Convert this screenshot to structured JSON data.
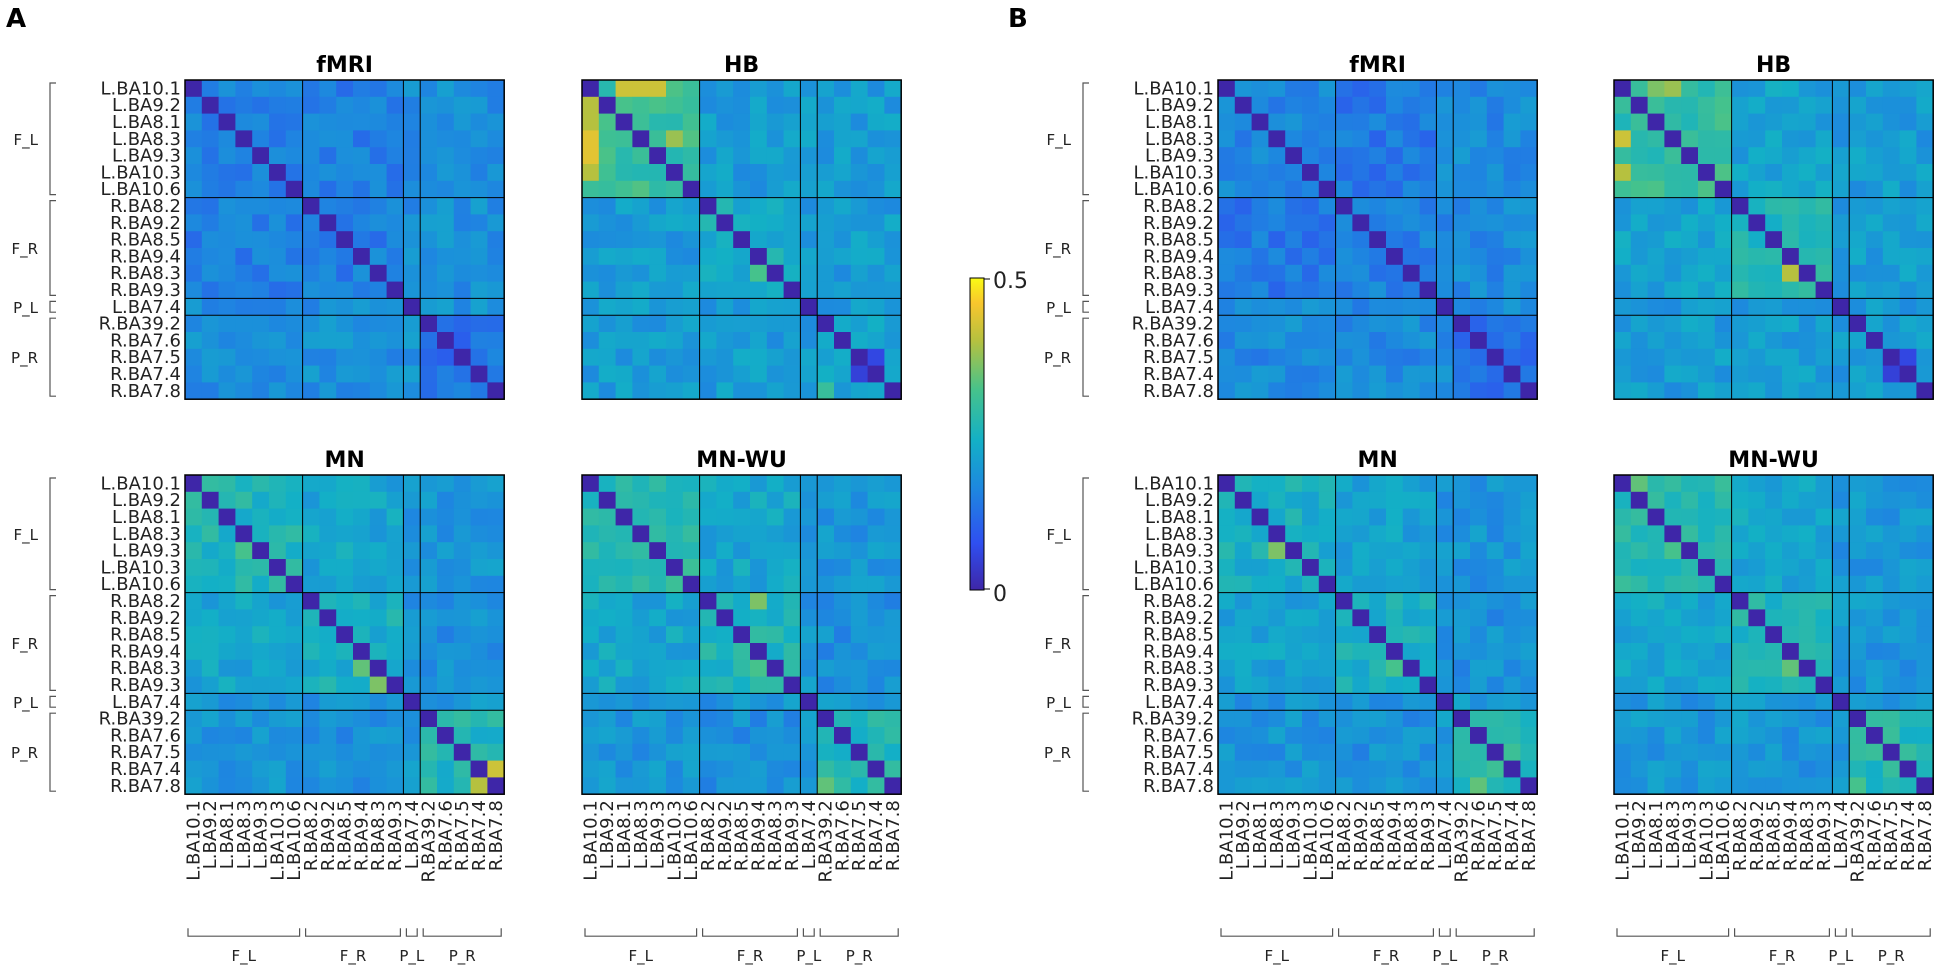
{
  "figure": {
    "panel_letters": [
      "A",
      "B"
    ]
  },
  "chart_data": {
    "type": "heatmap",
    "value_range": [
      0,
      0.5
    ],
    "colorbar": {
      "ticks": [
        "0.5",
        "0"
      ],
      "colormap": "parula"
    },
    "regions": [
      "L.BA10.1",
      "L.BA9.2",
      "L.BA8.1",
      "L.BA8.3",
      "L.BA9.3",
      "L.BA10.3",
      "L.BA10.6",
      "R.BA8.2",
      "R.BA9.2",
      "R.BA8.5",
      "R.BA9.4",
      "R.BA8.3",
      "R.BA9.3",
      "L.BA7.4",
      "R.BA39.2",
      "R.BA7.6",
      "R.BA7.5",
      "R.BA7.4",
      "R.BA7.8"
    ],
    "groups": [
      {
        "label": "F_L",
        "start": 0,
        "end": 6
      },
      {
        "label": "F_R",
        "start": 7,
        "end": 12
      },
      {
        "label": "P_L",
        "start": 13,
        "end": 13
      },
      {
        "label": "P_R",
        "start": 14,
        "end": 18
      }
    ],
    "panels": [
      {
        "letter": "A",
        "matrices": [
          {
            "title": "fMRI",
            "base": 0.18,
            "diagonal": 0,
            "blocks": [
              [
                0,
                0,
                0.16
              ],
              [
                1,
                1,
                0.15
              ],
              [
                2,
                2,
                0.16
              ],
              [
                3,
                3,
                0.13
              ],
              [
                0,
                1,
                0.15
              ]
            ],
            "hotspots": []
          },
          {
            "title": "HB",
            "base": 0.2,
            "diagonal": 0,
            "blocks": [
              [
                0,
                0,
                0.3
              ],
              [
                1,
                1,
                0.24
              ],
              [
                2,
                2,
                0.2
              ],
              [
                3,
                3,
                0.22
              ],
              [
                0,
                1,
                0.2
              ],
              [
                0,
                3,
                0.2
              ]
            ],
            "hotspots": [
              [
                0,
                2,
                0.42
              ],
              [
                0,
                3,
                0.42
              ],
              [
                0,
                4,
                0.42
              ],
              [
                1,
                0,
                0.4
              ],
              [
                2,
                0,
                0.4
              ],
              [
                3,
                0,
                0.44
              ],
              [
                4,
                0,
                0.44
              ],
              [
                5,
                0,
                0.4
              ],
              [
                3,
                5,
                0.38
              ],
              [
                11,
                10,
                0.32
              ],
              [
                16,
                16,
                0.05
              ],
              [
                17,
                16,
                0.05
              ],
              [
                16,
                17,
                0.06
              ],
              [
                18,
                14,
                0.3
              ]
            ]
          },
          {
            "title": "MN",
            "base": 0.19,
            "diagonal": 0,
            "blocks": [
              [
                0,
                0,
                0.26
              ],
              [
                1,
                1,
                0.24
              ],
              [
                2,
                2,
                0.2
              ],
              [
                3,
                3,
                0.26
              ],
              [
                0,
                1,
                0.22
              ],
              [
                1,
                3,
                0.18
              ]
            ],
            "hotspots": [
              [
                4,
                3,
                0.32
              ],
              [
                11,
                10,
                0.34
              ],
              [
                12,
                11,
                0.36
              ],
              [
                17,
                18,
                0.42
              ],
              [
                18,
                17,
                0.4
              ]
            ]
          },
          {
            "title": "MN-WU",
            "base": 0.19,
            "diagonal": 0,
            "blocks": [
              [
                0,
                0,
                0.27
              ],
              [
                1,
                1,
                0.26
              ],
              [
                2,
                2,
                0.2
              ],
              [
                3,
                3,
                0.26
              ],
              [
                0,
                1,
                0.22
              ],
              [
                1,
                3,
                0.18
              ]
            ],
            "hotspots": [
              [
                7,
                10,
                0.36
              ],
              [
                11,
                10,
                0.32
              ],
              [
                18,
                14,
                0.34
              ]
            ]
          }
        ]
      },
      {
        "letter": "B",
        "matrices": [
          {
            "title": "fMRI",
            "base": 0.17,
            "diagonal": 0,
            "blocks": [
              [
                0,
                0,
                0.16
              ],
              [
                1,
                1,
                0.15
              ],
              [
                2,
                2,
                0.16
              ],
              [
                3,
                3,
                0.13
              ],
              [
                0,
                1,
                0.14
              ]
            ],
            "hotspots": []
          },
          {
            "title": "HB",
            "base": 0.2,
            "diagonal": 0,
            "blocks": [
              [
                0,
                0,
                0.29
              ],
              [
                1,
                1,
                0.26
              ],
              [
                2,
                2,
                0.2
              ],
              [
                3,
                3,
                0.2
              ],
              [
                0,
                1,
                0.21
              ]
            ],
            "hotspots": [
              [
                0,
                2,
                0.36
              ],
              [
                0,
                3,
                0.38
              ],
              [
                3,
                0,
                0.42
              ],
              [
                5,
                0,
                0.4
              ],
              [
                11,
                10,
                0.4
              ],
              [
                16,
                16,
                0.06
              ],
              [
                17,
                16,
                0.05
              ],
              [
                16,
                17,
                0.06
              ]
            ]
          },
          {
            "title": "MN",
            "base": 0.19,
            "diagonal": 0,
            "blocks": [
              [
                0,
                0,
                0.24
              ],
              [
                1,
                1,
                0.24
              ],
              [
                2,
                2,
                0.2
              ],
              [
                3,
                3,
                0.28
              ],
              [
                0,
                1,
                0.21
              ],
              [
                1,
                3,
                0.18
              ]
            ],
            "hotspots": [
              [
                4,
                3,
                0.36
              ],
              [
                11,
                10,
                0.32
              ],
              [
                18,
                15,
                0.34
              ]
            ]
          },
          {
            "title": "MN-WU",
            "base": 0.19,
            "diagonal": 0,
            "blocks": [
              [
                0,
                0,
                0.27
              ],
              [
                1,
                1,
                0.26
              ],
              [
                2,
                2,
                0.2
              ],
              [
                3,
                3,
                0.27
              ],
              [
                0,
                1,
                0.22
              ]
            ],
            "hotspots": [
              [
                0,
                1,
                0.34
              ],
              [
                4,
                3,
                0.32
              ],
              [
                11,
                10,
                0.34
              ],
              [
                18,
                14,
                0.32
              ]
            ]
          }
        ]
      }
    ]
  }
}
